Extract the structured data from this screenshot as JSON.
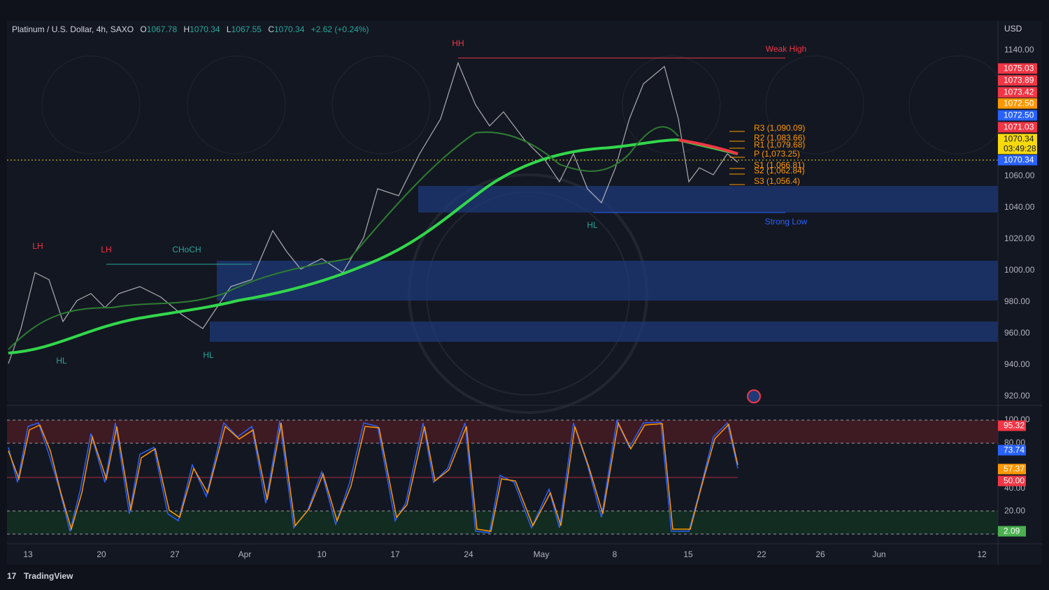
{
  "header": {
    "symbol": "Platinum / U.S. Dollar, 4h, SAXO",
    "open_label": "O",
    "open": "1067.78",
    "high_label": "H",
    "high": "1070.34",
    "low_label": "L",
    "low": "1067.55",
    "close_label": "C",
    "close": "1070.34",
    "change": "+2.62 (+0.24%)"
  },
  "currency": "USD",
  "price_axis": [
    "1140.00",
    "1060.00",
    "1040.00",
    "1020.00",
    "1000.00",
    "980.00",
    "960.00",
    "940.00",
    "920.00"
  ],
  "price_tags": [
    {
      "text": "1075.03",
      "color": "#f23645"
    },
    {
      "text": "1073.89",
      "color": "#f23645"
    },
    {
      "text": "1073.42",
      "color": "#f23645"
    },
    {
      "text": "1072.50",
      "color": "#ff9800"
    },
    {
      "text": "1072.50",
      "color": "#2962ff"
    },
    {
      "text": "1071.03",
      "color": "#f23645"
    },
    {
      "text": "1070.34",
      "color": "#f5d90a"
    },
    {
      "text": "03:49:28",
      "color": "#f5d90a"
    },
    {
      "text": "1070.34",
      "color": "#2962ff"
    }
  ],
  "oscillator_axis": [
    "100.00",
    "80.00",
    "40.00",
    "20.00"
  ],
  "oscillator_tags": [
    {
      "text": "95.32",
      "color": "#f23645"
    },
    {
      "text": "73.74",
      "color": "#2962ff"
    },
    {
      "text": "57.37",
      "color": "#ff9800"
    },
    {
      "text": "50.00",
      "color": "#f23645"
    },
    {
      "text": "2.09",
      "color": "#4caf50"
    }
  ],
  "time_axis": [
    "13",
    "20",
    "27",
    "Apr",
    "10",
    "17",
    "24",
    "May",
    "8",
    "15",
    "22",
    "26",
    "Jun",
    "12"
  ],
  "pivots": [
    "R3 (1,090.09)",
    "R2 (1,083.66)",
    "R1 (1,079.68)",
    "P (1,073.25)",
    "S1 (1,066.81)",
    "S2 (1,062.84)",
    "S3 (1,056.4)"
  ],
  "structure_labels": [
    {
      "text": "HH",
      "color": "#f23645"
    },
    {
      "text": "LH",
      "color": "#f23645"
    },
    {
      "text": "LH",
      "color": "#f23645"
    },
    {
      "text": "CHoCH",
      "color": "#26a69a"
    },
    {
      "text": "HL",
      "color": "#26a69a"
    },
    {
      "text": "HL",
      "color": "#26a69a"
    },
    {
      "text": "HL",
      "color": "#26a69a"
    },
    {
      "text": "Weak High",
      "color": "#f23645"
    },
    {
      "text": "Strong Low",
      "color": "#2962ff"
    }
  ],
  "footer": "TradingView"
}
